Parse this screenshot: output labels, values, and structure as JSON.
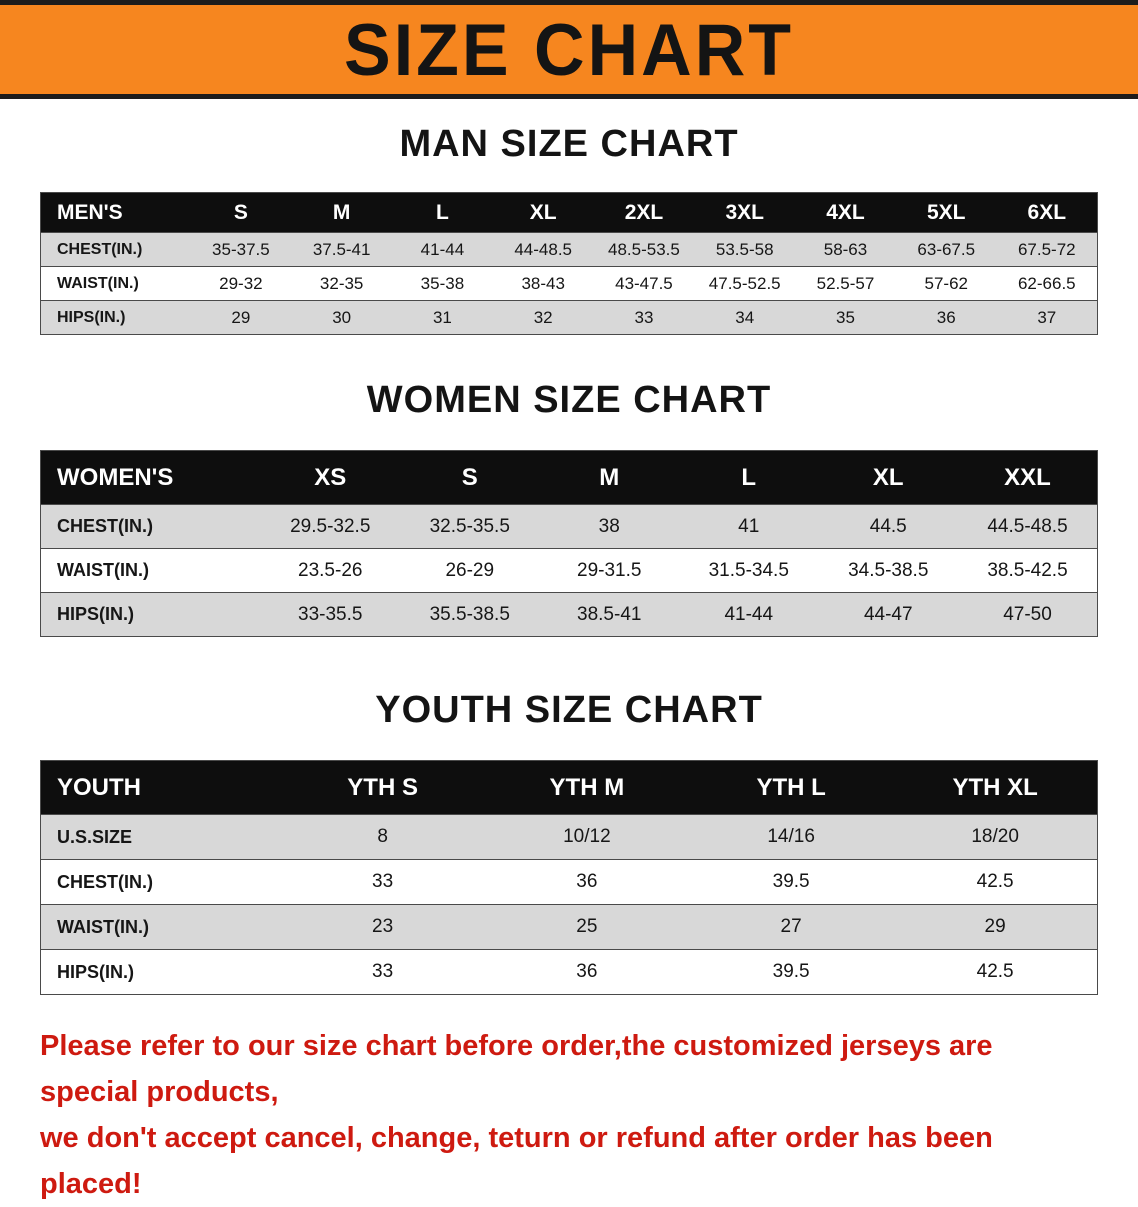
{
  "banner": {
    "title": "SIZE CHART",
    "bg_color": "#f6861f",
    "border_color": "#1c1c1c"
  },
  "men": {
    "title": "MAN SIZE CHART",
    "header": [
      "MEN'S",
      "S",
      "M",
      "L",
      "XL",
      "2XL",
      "3XL",
      "4XL",
      "5XL",
      "6XL"
    ],
    "rows": [
      {
        "label": "CHEST(IN.)",
        "values": [
          "35-37.5",
          "37.5-41",
          "41-44",
          "44-48.5",
          "48.5-53.5",
          "53.5-58",
          "58-63",
          "63-67.5",
          "67.5-72"
        ]
      },
      {
        "label": "WAIST(IN.)",
        "values": [
          "29-32",
          "32-35",
          "35-38",
          "38-43",
          "43-47.5",
          "47.5-52.5",
          "52.5-57",
          "57-62",
          "62-66.5"
        ]
      },
      {
        "label": "HIPS(IN.)",
        "values": [
          "29",
          "30",
          "31",
          "32",
          "33",
          "34",
          "35",
          "36",
          "37"
        ]
      }
    ]
  },
  "women": {
    "title": "WOMEN SIZE CHART",
    "header": [
      "WOMEN'S",
      "XS",
      "S",
      "M",
      "L",
      "XL",
      "XXL"
    ],
    "rows": [
      {
        "label": "CHEST(IN.)",
        "values": [
          "29.5-32.5",
          "32.5-35.5",
          "38",
          "41",
          "44.5",
          "44.5-48.5"
        ]
      },
      {
        "label": "WAIST(IN.)",
        "values": [
          "23.5-26",
          "26-29",
          "29-31.5",
          "31.5-34.5",
          "34.5-38.5",
          "38.5-42.5"
        ]
      },
      {
        "label": "HIPS(IN.)",
        "values": [
          "33-35.5",
          "35.5-38.5",
          "38.5-41",
          "41-44",
          "44-47",
          "47-50"
        ]
      }
    ]
  },
  "youth": {
    "title": "YOUTH SIZE CHART",
    "header": [
      "YOUTH",
      "YTH S",
      "YTH M",
      "YTH L",
      "YTH XL"
    ],
    "rows": [
      {
        "label": "U.S.SIZE",
        "values": [
          "8",
          "10/12",
          "14/16",
          "18/20"
        ]
      },
      {
        "label": "CHEST(IN.)",
        "values": [
          "33",
          "36",
          "39.5",
          "42.5"
        ]
      },
      {
        "label": "WAIST(IN.)",
        "values": [
          "23",
          "25",
          "27",
          "29"
        ]
      },
      {
        "label": "HIPS(IN.)",
        "values": [
          "33",
          "36",
          "39.5",
          "42.5"
        ]
      }
    ]
  },
  "footer": {
    "line1": "Please refer to our size chart before order,the customized jerseys are special products,",
    "line2": "we don't accept cancel, change, teturn or refund after order has been placed!",
    "color": "#ce1a10"
  }
}
